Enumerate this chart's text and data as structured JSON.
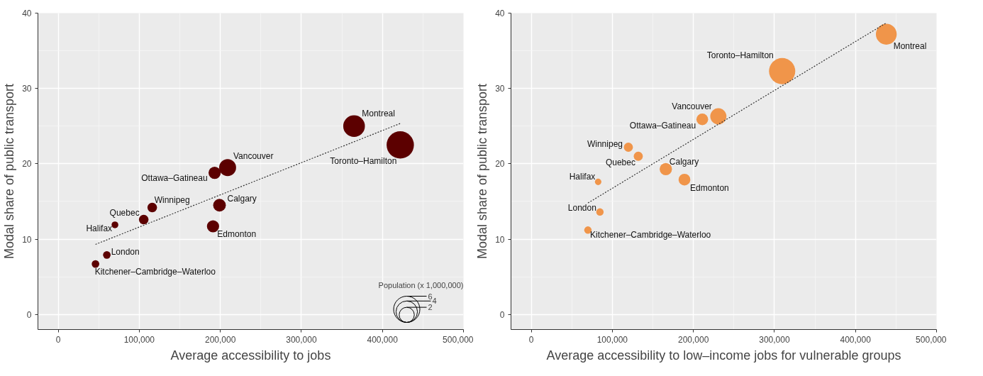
{
  "chart_data": [
    {
      "type": "bubble",
      "xlabel": "Average accessibility to jobs",
      "ylabel": "Modal share of public transport",
      "xlim": [
        -25000,
        500000
      ],
      "ylim": [
        -2,
        40
      ],
      "xticks": [
        0,
        {
          "value": 100000,
          "label": "100,000"
        },
        {
          "value": 200000,
          "label": "200,000"
        },
        {
          "value": 300000,
          "label": "300,000"
        },
        {
          "value": 400000,
          "label": "400,000"
        },
        {
          "value": 500000,
          "label": "500,000"
        }
      ],
      "yticks": [
        0,
        10,
        20,
        30,
        40
      ],
      "grid": true,
      "legend_title": "Population (x 1,000,000)",
      "size_legend": [
        2,
        4,
        6
      ],
      "series": [
        {
          "color": "#5c0000",
          "x": [
            365000,
            422000,
            209000,
            193000,
            199000,
            191000,
            116000,
            105500,
            70000,
            60000,
            46000
          ],
          "values": [
            25.0,
            22.5,
            19.5,
            18.8,
            14.5,
            11.7,
            14.2,
            12.6,
            11.9,
            7.9,
            6.7
          ],
          "sizes": [
            4.1,
            6.5,
            2.5,
            1.3,
            1.4,
            1.3,
            0.8,
            0.8,
            0.4,
            0.5,
            0.5
          ]
        },
        {
          "type": "line",
          "color": "#333333",
          "line_style": "dotted",
          "x": [
            46000,
            423000
          ],
          "values": [
            9.3,
            25.4
          ]
        }
      ],
      "annotations": [
        {
          "text": "Montreal",
          "x": 365000,
          "y": 25.0
        },
        {
          "text": "Toronto–Hamilton",
          "x": 422000,
          "y": 22.5
        },
        {
          "text": "Vancouver",
          "x": 209000,
          "y": 19.5
        },
        {
          "text": "Ottawa–Gatineau",
          "x": 193000,
          "y": 18.8
        },
        {
          "text": "Calgary",
          "x": 199000,
          "y": 14.5
        },
        {
          "text": "Edmonton",
          "x": 191000,
          "y": 11.7
        },
        {
          "text": "Winnipeg",
          "x": 116000,
          "y": 14.2
        },
        {
          "text": "Quebec",
          "x": 105500,
          "y": 12.6
        },
        {
          "text": "Halifax",
          "x": 70000,
          "y": 11.9
        },
        {
          "text": "London",
          "x": 60000,
          "y": 7.9
        },
        {
          "text": "Kitchener–Cambridge–Waterloo",
          "x": 46000,
          "y": 6.7
        }
      ]
    },
    {
      "type": "bubble",
      "xlabel": "Average accessibility to low–income jobs for vulnerable groups",
      "ylabel": "Modal share of public transport",
      "xlim": [
        -25000,
        500000
      ],
      "ylim": [
        -2,
        40
      ],
      "xticks": [
        0,
        {
          "value": 100000,
          "label": "100,000"
        },
        {
          "value": 200000,
          "label": "200,000"
        },
        {
          "value": 300000,
          "label": "300,000"
        },
        {
          "value": 400000,
          "label": "400,000"
        },
        {
          "value": 500000,
          "label": "500,000"
        }
      ],
      "yticks": [
        0,
        10,
        20,
        30,
        40
      ],
      "grid": true,
      "series": [
        {
          "color": "#f0954a",
          "x": [
            438000,
            309500,
            230800,
            211000,
            166000,
            189000,
            119800,
            132000,
            82500,
            84700,
            69900
          ],
          "values": [
            37.2,
            32.3,
            26.3,
            25.9,
            19.3,
            17.9,
            22.2,
            21.0,
            17.6,
            13.6,
            11.2
          ],
          "sizes": [
            0.63,
            1,
            0.38,
            0.2,
            0.22,
            0.2,
            0.12,
            0.12,
            0.06,
            0.08,
            0.08
          ]
        },
        {
          "type": "line",
          "color": "#333333",
          "line_style": "dotted",
          "x": [
            70000,
            438000
          ],
          "values": [
            14.8,
            38.7
          ]
        }
      ],
      "annotations": [
        {
          "text": "Montreal",
          "x": 438000,
          "y": 37.2
        },
        {
          "text": "Toronto–Hamilton",
          "x": 309500,
          "y": 32.3
        },
        {
          "text": "Vancouver",
          "x": 230800,
          "y": 26.3
        },
        {
          "text": "Ottawa–Gatineau",
          "x": 211000,
          "y": 25.9
        },
        {
          "text": "Calgary",
          "x": 166000,
          "y": 19.3
        },
        {
          "text": "Edmonton",
          "x": 189000,
          "y": 17.9
        },
        {
          "text": "Winnipeg",
          "x": 119800,
          "y": 22.2
        },
        {
          "text": "Quebec",
          "x": 132000,
          "y": 21.0
        },
        {
          "text": "Halifax",
          "x": 82500,
          "y": 17.6
        },
        {
          "text": "London",
          "x": 84700,
          "y": 13.6
        },
        {
          "text": "Kitchener–Cambridge–Waterloo",
          "x": 69900,
          "y": 11.2
        }
      ]
    }
  ]
}
